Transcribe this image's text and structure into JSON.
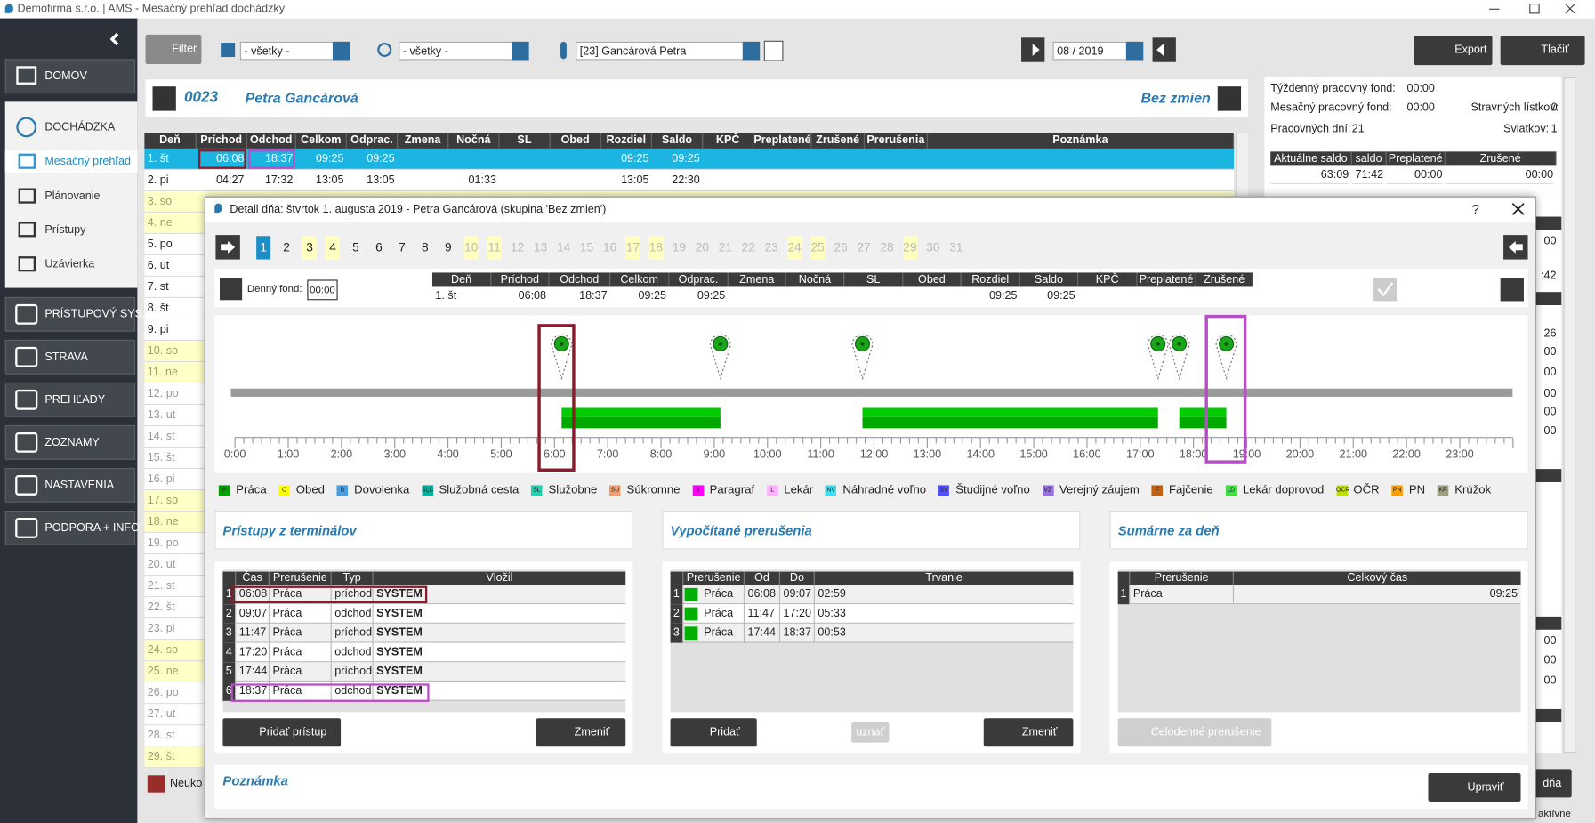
{
  "window": {
    "title": "Demofirma s.r.o. | AMS - Mesačný prehľad dochádzky"
  },
  "sidebar": {
    "home": "DOMOV",
    "section": "DOCHÁDZKA",
    "sub": [
      "Mesačný prehľad",
      "Plánovanie",
      "Prístupy",
      "Uzávierka"
    ],
    "modules": [
      "PRÍSTUPOVÝ SYS.",
      "STRAVA",
      "PREHĽADY",
      "ZOZNAMY",
      "NASTAVENIA",
      "PODPORA + INFO"
    ]
  },
  "toolbar": {
    "filter": "Filter",
    "department": "- všetky -",
    "group": "- všetky -",
    "employee": "[23] Gancárová Petra",
    "period": "08 / 2019",
    "export": "Export",
    "print": "Tlačiť"
  },
  "employee": {
    "number": "0023",
    "name": "Petra Gancárová",
    "shift_group": "Bez zmien"
  },
  "month_table": {
    "columns": [
      "Deň",
      "Príchod",
      "Odchod",
      "Celkom",
      "Odprac.",
      "Zmena",
      "Nočná",
      "SL",
      "Obed",
      "Rozdiel",
      "Saldo",
      "KPČ",
      "Preplatené",
      "Zrušené",
      "Prerušenia",
      "Poznámka"
    ],
    "rows": [
      [
        "1. št",
        "06:08",
        "18:37",
        "09:25",
        "09:25",
        null,
        null,
        null,
        null,
        "09:25",
        "09:25",
        null,
        null,
        null,
        null,
        null
      ],
      [
        "2. pi",
        "04:27",
        "17:32",
        "13:05",
        "13:05",
        null,
        "01:33",
        null,
        null,
        "13:05",
        "22:30",
        null,
        null,
        null,
        null,
        null
      ],
      [
        "3. so"
      ],
      [
        "4. ne"
      ],
      [
        "5. po"
      ],
      [
        "6. ut"
      ],
      [
        "7. st"
      ],
      [
        "8. št"
      ],
      [
        "9. pi"
      ],
      [
        "10. so"
      ],
      [
        "11. ne"
      ],
      [
        "12. po"
      ],
      [
        "13. ut"
      ],
      [
        "14. st"
      ],
      [
        "15. št"
      ],
      [
        "16. pi"
      ],
      [
        "17. so"
      ],
      [
        "18. ne"
      ],
      [
        "19. po"
      ],
      [
        "20. ut"
      ],
      [
        "21. st"
      ],
      [
        "22. št"
      ],
      [
        "23. pi"
      ],
      [
        "24. so"
      ],
      [
        "25. ne"
      ],
      [
        "26. po"
      ],
      [
        "27. ut"
      ],
      [
        "28. st"
      ],
      [
        "29. št"
      ]
    ]
  },
  "right_panel": {
    "weekly_fund_label": "Týždenný pracovný fond:",
    "weekly_fund": "00:00",
    "monthly_fund_label": "Mesačný pracovný fond:",
    "monthly_fund": "00:00",
    "meal_label": "Stravných lístkov:",
    "meal": 0,
    "workdays_label": "Pracovných dní:",
    "workdays": 21,
    "holidays_label": "Sviatkov:",
    "holidays": 1,
    "saldo_table": {
      "columns": [
        "Aktuálne saldo",
        "saldo",
        "Preplatené",
        "Zrušené"
      ],
      "rows": [
        [
          "63:09",
          "71:42",
          "00:00",
          "00:00"
        ]
      ]
    },
    "peek": [
      "00",
      ":42",
      "26",
      "00",
      "00",
      "00",
      "00",
      "00",
      "00",
      "00",
      "00"
    ]
  },
  "footer": {
    "legend": "Neuko",
    "button": "dňa",
    "status": "aktívne"
  },
  "dialog": {
    "title": "Detail dňa: štvrtok 1. augusta 2019 -  Petra Gancárová  (skupina 'Bez zmien')",
    "help": "?",
    "days": [
      1,
      2,
      3,
      4,
      5,
      6,
      7,
      8,
      9,
      10,
      11,
      12,
      13,
      14,
      15,
      16,
      17,
      18,
      19,
      20,
      21,
      22,
      23,
      24,
      25,
      26,
      27,
      28,
      29,
      30,
      31
    ],
    "highlighted_days": [
      3,
      4,
      10,
      11,
      17,
      18,
      24,
      25,
      29
    ],
    "selected_day": 1,
    "fund_label": "Denný fond:",
    "fund": "00:00",
    "day_table": {
      "columns": [
        "Deň",
        "Príchod",
        "Odchod",
        "Celkom",
        "Odprac.",
        "Zmena",
        "Nočná",
        "SL",
        "Obed",
        "Rozdiel",
        "Saldo",
        "KPČ",
        "Preplatené",
        "Zrušené"
      ],
      "rows": [
        [
          "1. št",
          "06:08",
          "18:37",
          "09:25",
          "09:25",
          null,
          null,
          null,
          null,
          "09:25",
          "09:25",
          null,
          null,
          null
        ]
      ]
    },
    "timeline": {
      "hours": [
        "0:00",
        "1:00",
        "2:00",
        "3:00",
        "4:00",
        "5:00",
        "6:00",
        "7:00",
        "8:00",
        "9:00",
        "10:00",
        "11:00",
        "12:00",
        "13:00",
        "14:00",
        "15:00",
        "16:00",
        "17:00",
        "18:00",
        "19:00",
        "20:00",
        "21:00",
        "22:00",
        "23:00"
      ]
    },
    "legend": [
      {
        "code": "P",
        "label": "Práca",
        "color": "#00a000"
      },
      {
        "code": "O",
        "label": "Obed",
        "color": "#ffff00"
      },
      {
        "code": "D",
        "label": "Dovolenka",
        "color": "#4a9de0"
      },
      {
        "code": "SLC",
        "label": "Služobná cesta",
        "color": "#00b0a0"
      },
      {
        "code": "SL",
        "label": "Služobne",
        "color": "#20d0b0"
      },
      {
        "code": "SU",
        "label": "Súkromne",
        "color": "#f0a070"
      },
      {
        "code": "§",
        "label": "Paragraf",
        "color": "#ff00ff"
      },
      {
        "code": "L",
        "label": "Lekár",
        "color": "#ffb0ff"
      },
      {
        "code": "NV",
        "label": "Náhradné voľno",
        "color": "#40e0f0"
      },
      {
        "code": "SV",
        "label": "Študijné voľno",
        "color": "#5050ff"
      },
      {
        "code": "VZ",
        "label": "Verejný záujem",
        "color": "#9a70e0"
      },
      {
        "code": "F",
        "label": "Fajčenie",
        "color": "#c06010"
      },
      {
        "code": "LD",
        "label": "Lekár doprovod",
        "color": "#40e040"
      },
      {
        "code": "OCR",
        "label": "OČR",
        "color": "#c0e000"
      },
      {
        "code": "PN",
        "label": "PN",
        "color": "#ffa000"
      },
      {
        "code": "KR",
        "label": "Krúžok",
        "color": "#a0a080"
      }
    ],
    "accesses": {
      "title": "Prístupy z terminálov",
      "columns": [
        "Čas",
        "Prerušenie",
        "Typ",
        "Vložil"
      ],
      "rows": [
        [
          1,
          "06:08",
          "Práca",
          "príchod",
          "SYSTEM"
        ],
        [
          2,
          "09:07",
          "Práca",
          "odchod",
          "SYSTEM"
        ],
        [
          3,
          "11:47",
          "Práca",
          "príchod",
          "SYSTEM"
        ],
        [
          4,
          "17:20",
          "Práca",
          "odchod",
          "SYSTEM"
        ],
        [
          5,
          "17:44",
          "Práca",
          "príchod",
          "SYSTEM"
        ],
        [
          6,
          "18:37",
          "Práca",
          "odchod",
          "SYSTEM"
        ]
      ],
      "buttons": [
        "Pridať prístup",
        "Zmeniť"
      ]
    },
    "interruptions": {
      "title": "Vypočítané prerušenia",
      "columns": [
        "Prerušenie",
        "Od",
        "Do",
        "Trvanie"
      ],
      "color": "#00b000",
      "rows": [
        [
          1,
          "Práca",
          "06:08",
          "09:07",
          "02:59"
        ],
        [
          2,
          "Práca",
          "11:47",
          "17:20",
          "05:33"
        ],
        [
          3,
          "Práca",
          "17:44",
          "18:37",
          "00:53"
        ]
      ],
      "buttons": [
        "Pridať",
        "uznať",
        "Zmeniť"
      ]
    },
    "summary": {
      "title": "Sumárne za deň",
      "columns": [
        "Prerušenie",
        "Celkový čas"
      ],
      "rows": [
        [
          1,
          "Práca",
          "09:25"
        ]
      ],
      "button": "Celodenné prerušenie"
    },
    "note": {
      "title": "Poznámka",
      "button": "Upraviť"
    }
  }
}
